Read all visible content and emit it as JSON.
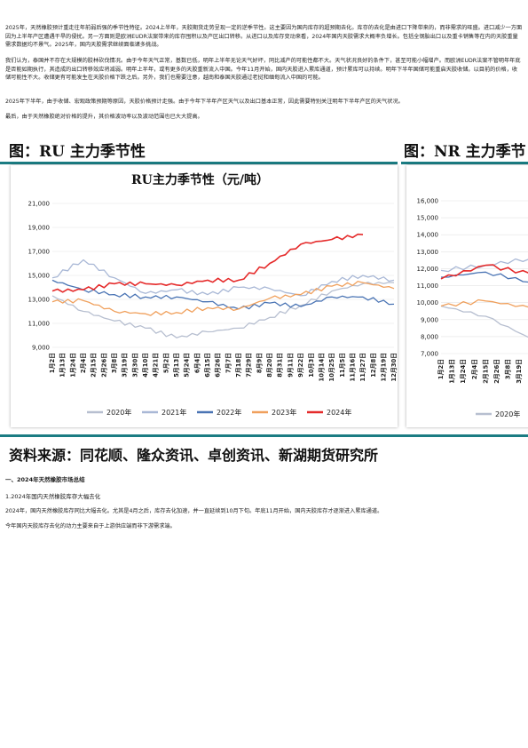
{
  "paragraphs": [
    "2025年，天然橡胶预计重走往年前弱后强的季节性特征。2024上半年，天胶期货走势呈现一定的逆季节性。这主要因为国内库存的超预期去化。库存的去化是由进口下降带来的，而非需求的旺盛。进口减少一方面因为上半年产区遭遇干旱的侵扰。另一方面则是欧洲EUDR法案带来的库存囤积以及产区出口转移。从进口以及库存变动来看，2024年国内天胶需求大概率负增长。包括全钢胎出口以及重卡销售等在内的天胶重量需求数据均不景气。2025年，国内天胶需求继续面临诸多挑战。",
    "我们认为，泰国并不存在大规模的胶林砍伐情况。由于今年天气正常，基数已低，明年上半年无论天气好坏，同比减产的可能性都不大。天气状况良好的条件下，甚至可能小幅增产。而欧洲EUDR法案不管明年年底是否能如期执行，其造成的出口转移效应将减弱。明年上半年，或有更多的天胶重新流入中国。今年11月开始，国内天胶进入累库通道，预计累库可以持续。明年下半年国储可能重启天胶收储。以目前的价格，收储可能性不大。收储更有可能发生在天胶价格下跌之后。另外，我们也需要注意，越南和泰国天胶通过老挝和缅甸流入中国的可能。",
    "2025年下半年，由于收储、宏观政策预期等原因，天胶价格预计走强。由于今年下半年产区天气以及出口基本正常，因此需要特别关注明年下半年产区的天气状况。",
    "最后，由于天然橡胶绝对价格的提升，其价格波动率以及波动范围也已大大提高。"
  ],
  "figure": {
    "panel_left_title": "图：RU 主力季节性",
    "panel_right_title": "图：NR 主力季节",
    "source_line": "资料来源：同花顺、隆众资讯、卓创资讯、新湖期货研究所",
    "left_chart": {
      "title": "RU主力季节性（元/吨）",
      "y_ticks": [
        "21,000",
        "19,000",
        "17,000",
        "15,000",
        "13,000",
        "11,000",
        "9,000"
      ],
      "x_ticks": [
        "1月2日",
        "1月13日",
        "1月24日",
        "2月4日",
        "2月15日",
        "2月26日",
        "3月8日",
        "3月19日",
        "3月30日",
        "4月10日",
        "4月21日",
        "5月2日",
        "5月13日",
        "5月24日",
        "6月4日",
        "6月15日",
        "6月26日",
        "7月7日",
        "7月18日",
        "7月29日",
        "8月9日",
        "8月20日",
        "8月31日",
        "9月11日",
        "9月22日",
        "10月3日",
        "10月14日",
        "10月25日",
        "11月5日",
        "11月16日",
        "11月27日",
        "12月8日",
        "12月19日",
        "12月30日"
      ],
      "legend": [
        "2020年",
        "2021年",
        "2022年",
        "2023年",
        "2024年"
      ]
    },
    "right_chart": {
      "y_ticks": [
        "16,000",
        "15,000",
        "14,000",
        "13,000",
        "12,000",
        "11,000",
        "10,000",
        "9,000",
        "8,000",
        "7,000"
      ],
      "x_ticks": [
        "1月2日",
        "1月13日",
        "1月24日",
        "2月4日",
        "2月15日",
        "2月26日",
        "3月8日",
        "3月19日"
      ],
      "legend": [
        "2020年"
      ]
    },
    "chart_data": [
      {
        "type": "line",
        "title": "RU主力季节性（元/吨）",
        "xlabel": "",
        "ylabel": "",
        "ylim": [
          9000,
          21000
        ],
        "x": [
          1,
          2,
          3,
          4,
          5,
          6,
          7,
          8,
          9,
          10,
          11,
          12
        ],
        "series": [
          {
            "name": "2020年",
            "color": "#b7bfd0",
            "values": [
              13300,
              12000,
              11200,
              10600,
              9800,
              10300,
              10600,
              11500,
              12500,
              13700,
              14300,
              14400
            ]
          },
          {
            "name": "2021年",
            "color": "#a9b8d6",
            "values": [
              14800,
              16300,
              14800,
              13500,
              13800,
              13400,
              14000,
              13900,
              13300,
              14500,
              15000,
              14600
            ]
          },
          {
            "name": "2022年",
            "color": "#4a74b4",
            "values": [
              14600,
              13800,
              13400,
              13200,
              13200,
              12800,
              12200,
              12700,
              12400,
              13200,
              13200,
              12600
            ]
          },
          {
            "name": "2023年",
            "color": "#f0a05c",
            "values": [
              12800,
              12900,
              12000,
              11800,
              11900,
              12300,
              12200,
              13100,
              13400,
              14100,
              14400,
              13900
            ]
          },
          {
            "name": "2024年",
            "color": "#e52b2b",
            "values": [
              13700,
              13800,
              14300,
              14300,
              14200,
              14600,
              14600,
              16000,
              17600,
              18000,
              18400,
              null
            ]
          }
        ]
      },
      {
        "type": "line",
        "title": "",
        "xlabel": "",
        "ylabel": "",
        "ylim": [
          7000,
          16000
        ],
        "x": [
          1,
          2,
          3
        ],
        "series": [
          {
            "color": "#b7bfd0",
            "values": [
              9800,
              9200,
              7900
            ]
          },
          {
            "color": "#a9b8d6",
            "values": [
              11900,
              12200,
              12600
            ]
          },
          {
            "color": "#4a74b4",
            "values": [
              11500,
              11800,
              11200
            ]
          },
          {
            "color": "#f0a05c",
            "values": [
              9800,
              10100,
              9700
            ]
          },
          {
            "color": "#e52b2b",
            "values": [
              11400,
              12200,
              11700
            ]
          }
        ]
      }
    ]
  },
  "section": {
    "heading": "一、2024年天然橡胶市场总结",
    "subheading": "1.2024年国内天然橡胶库存大幅去化",
    "paragraphs": [
      "2024年，国内天然橡胶库存同比大幅去化。尤其是4月之后，库存去化加速，并一直延续到10月下旬。年底11月开始，国内天胶库存才逐渐进入累库通道。",
      "今年国内天胶库存去化的动力主要来自于上游供应端而非下游需求端。"
    ]
  }
}
